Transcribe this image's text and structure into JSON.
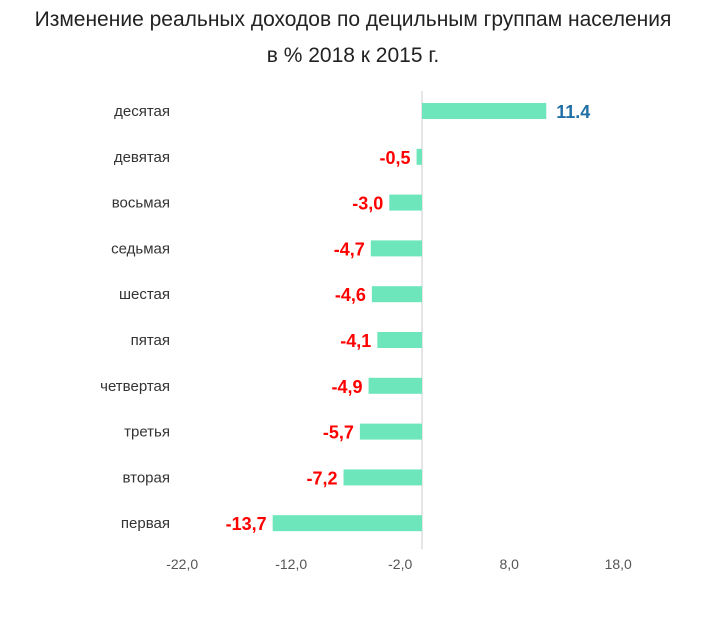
{
  "chart_data": {
    "type": "bar",
    "orientation": "horizontal",
    "title": "Изменение реальных доходов по децильным группам населения",
    "subtitle": "в % 2018 к 2015 г.",
    "categories": [
      "десятая",
      "девятая",
      "восьмая",
      "седьмая",
      "шестая",
      "пятая",
      "четвертая",
      "третья",
      "вторая",
      "первая"
    ],
    "values": [
      11.4,
      -0.5,
      -3.0,
      -4.7,
      -4.6,
      -4.1,
      -4.9,
      -5.7,
      -7.2,
      -13.7
    ],
    "data_labels": [
      "11.4",
      "-0,5",
      "-3,0",
      "-4,7",
      "-4,6",
      "-4,1",
      "-4,9",
      "-5,7",
      "-7,2",
      "-13,7"
    ],
    "x_ticks": [
      -22,
      -12,
      -2,
      8,
      18
    ],
    "x_tick_labels": [
      "-22,0",
      "-12,0",
      "-2,0",
      "8,0",
      "18,0"
    ],
    "xlim": [
      -22,
      18
    ],
    "xlabel": "",
    "ylabel": "",
    "grid": false,
    "legend": "none"
  },
  "colors": {
    "bar": "#6ee6bb",
    "positive_label": "#1f6fa6",
    "negative_label": "#ff0000",
    "zero_line": "#cccccc"
  }
}
